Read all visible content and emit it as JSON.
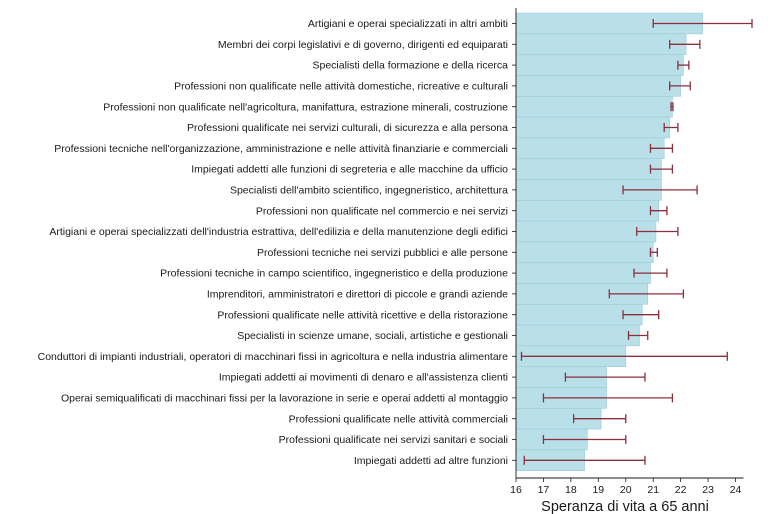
{
  "chart_data": {
    "type": "bar",
    "orientation": "horizontal",
    "xlabel": "Speranza di vita a 65 anni",
    "xlim": [
      16,
      24.6
    ],
    "xticks": [
      16,
      17,
      18,
      19,
      20,
      21,
      22,
      23,
      24
    ],
    "bar_color": "#b9dfe8",
    "bar_edge_color": "#9ccbd8",
    "ci_color": "#8b2f3c",
    "axis_color": "#1a1a1a",
    "categories": [
      "Artigiani e operai specializzati in altri ambiti",
      "Membri dei corpi legislativi e di governo, dirigenti ed equiparati",
      "Specialisti della formazione e della ricerca",
      "Professioni non qualificate nelle attività domestiche, ricreative e culturali",
      "Professioni non qualificate nell'agricoltura, manifattura, estrazione minerali, costruzione",
      "Professioni qualificate nei servizi culturali, di sicurezza e alla persona",
      "Professioni tecniche nell'organizzazione, amministrazione e nelle attività finanziarie e commerciali",
      "Impiegati addetti alle funzioni di segreteria e alle macchine da ufficio",
      "Specialisti dell'ambito scientifico, ingegneristico, architettura",
      "Professioni non qualificate nel commercio e nei servizi",
      "Artigiani e operai specializzati dell'industria estrattiva, dell'edilizia e della manutenzione degli edifici",
      "Professioni tecniche nei servizi pubblici e alle persone",
      "Professioni tecniche in campo scientifico, ingegneristico e della produzione",
      "Imprenditori, amministratori e direttori di piccole e grandi aziende",
      "Professioni qualificate nelle attività ricettive e della ristorazione",
      "Specialisti in scienze umane, sociali, artistiche e gestionali",
      "Conduttori di impianti industriali, operatori di macchinari fissi in agricoltura e nella industria alimentare",
      "Impiegati addetti ai movimenti di denaro e all'assistenza clienti",
      "Operai semiqualificati di macchinari fissi per la lavorazione in serie e operai addetti al montaggio",
      "Professioni qualificate nelle attività commerciali",
      "Professioni qualificate nei servizi sanitari e sociali",
      "Impiegati addetti ad altre funzioni"
    ],
    "values": [
      22.8,
      22.2,
      22.1,
      22.0,
      21.7,
      21.6,
      21.4,
      21.3,
      21.3,
      21.2,
      21.1,
      21.0,
      20.9,
      20.8,
      20.6,
      20.5,
      20.0,
      19.3,
      19.3,
      19.1,
      18.6,
      18.5
    ],
    "ci_low": [
      21.0,
      21.6,
      21.9,
      21.6,
      21.65,
      21.4,
      20.9,
      20.9,
      19.9,
      20.9,
      20.4,
      20.9,
      20.3,
      19.4,
      19.9,
      20.1,
      16.2,
      17.8,
      17.0,
      18.1,
      17.0,
      16.3
    ],
    "ci_high": [
      24.6,
      22.7,
      22.3,
      22.35,
      21.72,
      21.9,
      21.7,
      21.7,
      22.6,
      21.5,
      21.9,
      21.15,
      21.5,
      22.1,
      21.2,
      20.8,
      23.7,
      20.7,
      21.7,
      20.0,
      20.0,
      20.7
    ]
  }
}
